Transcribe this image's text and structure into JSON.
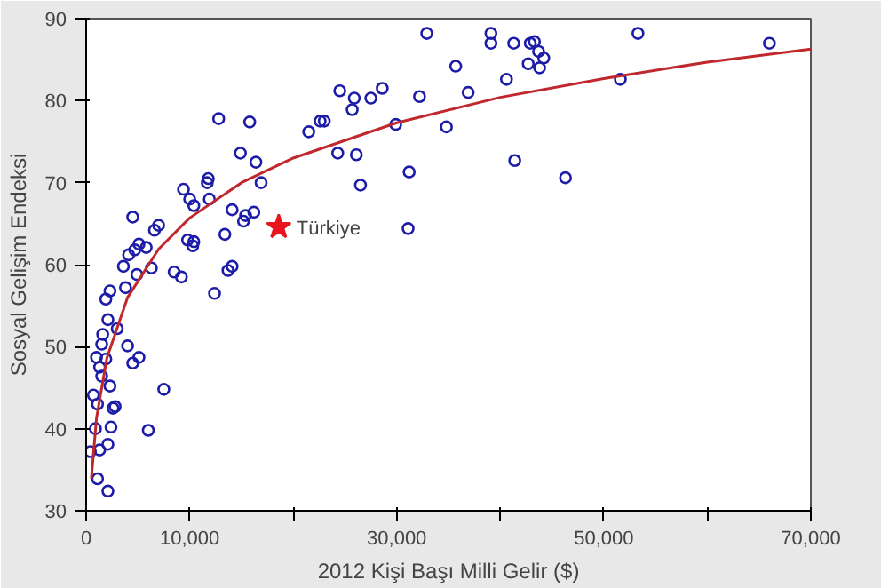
{
  "chart_data": {
    "type": "scatter",
    "xlabel": "2012 Kişi Başı Milli Gelir ($)",
    "ylabel": "Sosyal Gelişim Endeksi",
    "xlim": [
      0,
      70000
    ],
    "ylim": [
      30,
      90
    ],
    "xticks": [
      0,
      {
        "value": 10000,
        "label": "10,000"
      },
      {
        "value": 20000,
        "label": null
      },
      {
        "value": 30000,
        "label": "30,000"
      },
      {
        "value": 40000,
        "label": null
      },
      {
        "value": 50000,
        "label": "50,000"
      },
      {
        "value": 60000,
        "label": null
      },
      {
        "value": 70000,
        "label": "70,000"
      }
    ],
    "yticks": [
      30,
      40,
      50,
      60,
      70,
      80,
      90
    ],
    "grid": false,
    "marker": "circle",
    "series": [
      {
        "color": "#1c1ca8",
        "x": [
          32900,
          39100,
          39100,
          41300,
          42900,
          43300,
          43700,
          44200,
          42700,
          43800,
          53300,
          66000,
          35700,
          40600,
          51600,
          24500,
          25900,
          27500,
          28600,
          25700,
          32200,
          36900,
          34800,
          29900,
          23000,
          24300,
          26100,
          26500,
          31200,
          41400,
          46300,
          31100,
          12800,
          15800,
          22600,
          21500,
          14900,
          16400,
          11800,
          11700,
          9400,
          16900,
          10000,
          10400,
          11900,
          14100,
          15400,
          16200,
          4500,
          7000,
          6600,
          9800,
          10400,
          13400,
          15200,
          5100,
          4700,
          5800,
          4100,
          10300,
          3600,
          4900,
          6300,
          8500,
          9200,
          13700,
          14100,
          12400,
          3800,
          2300,
          1900,
          2100,
          3000,
          1600,
          1500,
          4000,
          5100,
          4500,
          1000,
          1900,
          1300,
          1500,
          2300,
          700,
          7500,
          1100,
          2600,
          2800,
          900,
          2400,
          6000,
          400,
          1300,
          2100,
          1100,
          2100
        ],
        "values": [
          88.2,
          88.2,
          87,
          87,
          87,
          87.2,
          86,
          85.2,
          84.5,
          84,
          88.2,
          87,
          84.2,
          82.6,
          82.6,
          81.2,
          80.3,
          80.3,
          81.5,
          78.9,
          80.5,
          81,
          76.8,
          77.1,
          77.5,
          73.6,
          73.4,
          69.7,
          71.3,
          72.7,
          70.6,
          64.4,
          77.8,
          77.4,
          77.5,
          76.2,
          73.6,
          72.5,
          70.5,
          70,
          69.2,
          70,
          68,
          67.2,
          68,
          66.7,
          66,
          66.4,
          65.8,
          64.8,
          64.2,
          63,
          62.8,
          63.7,
          65.3,
          62.5,
          61.8,
          62.1,
          61.2,
          62.3,
          59.8,
          58.8,
          59.6,
          59.1,
          58.5,
          59.3,
          59.8,
          56.5,
          57.2,
          56.8,
          55.8,
          53.3,
          52.2,
          51.5,
          50.3,
          50.1,
          48.7,
          48,
          48.7,
          48.5,
          47.5,
          46.4,
          45.2,
          44.1,
          44.8,
          43,
          42.5,
          42.7,
          40,
          40.2,
          39.8,
          37.2,
          37.4,
          38.1,
          33.9,
          32.4
        ]
      },
      {
        "type": "line",
        "color": "#c0282d",
        "marker": "none",
        "x": [
          500,
          1000,
          2000,
          4000,
          7000,
          10000,
          15000,
          20000,
          30000,
          40000,
          50000,
          60000,
          70000
        ],
        "values": [
          33.9,
          41.3,
          48.6,
          56.0,
          61.9,
          65.7,
          70.0,
          73.0,
          77.3,
          80.4,
          82.7,
          84.7,
          86.3
        ]
      },
      {
        "color": "#e8141e",
        "marker": "star",
        "x": [
          18600
        ],
        "values": [
          64.6
        ]
      }
    ],
    "annotations": [
      {
        "text": "Türkiye",
        "x": 18600,
        "y": 64.6
      }
    ]
  }
}
